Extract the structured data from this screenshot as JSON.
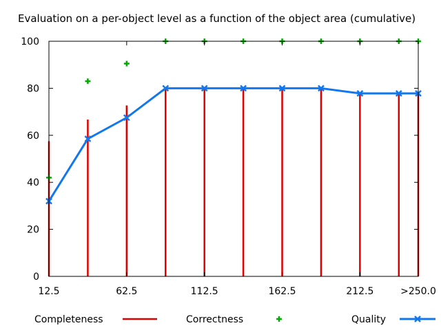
{
  "chart_data": {
    "type": "bar",
    "title": "Evaluation on a per-object level as a function of the object area (cumulative)",
    "xlabel": "",
    "ylabel": "",
    "x": [
      12.5,
      37.5,
      62.5,
      87.5,
      112.5,
      137.5,
      162.5,
      187.5,
      212.5,
      237.5,
      250
    ],
    "xticks": [
      {
        "value": 12.5,
        "label": "12.5"
      },
      {
        "value": 62.5,
        "label": "62.5"
      },
      {
        "value": 112.5,
        "label": "112.5"
      },
      {
        "value": 162.5,
        "label": "162.5"
      },
      {
        "value": 212.5,
        "label": "212.5"
      },
      {
        "value": 250,
        "label": ">250.0"
      }
    ],
    "yticks": [
      0,
      20,
      40,
      60,
      80,
      100
    ],
    "xlim": [
      12.5,
      250
    ],
    "ylim": [
      0,
      100
    ],
    "grid": false,
    "legend_position": "bottom",
    "series": [
      {
        "name": "Completeness",
        "kind": "impulse",
        "color": "#dd0000",
        "values": [
          57.5,
          66.7,
          72.7,
          80,
          80,
          80,
          80,
          80,
          77.8,
          77.8,
          77.8
        ]
      },
      {
        "name": "Correctness",
        "kind": "points",
        "color": "#00aa00",
        "values": [
          42,
          83,
          90.5,
          100,
          100,
          100,
          100,
          100,
          100,
          100,
          100
        ]
      },
      {
        "name": "Quality",
        "kind": "linespoints",
        "color": "#1177ee",
        "values": [
          32,
          58.5,
          67.5,
          80,
          80,
          80,
          80,
          80,
          77.8,
          77.8,
          77.8
        ]
      }
    ]
  }
}
